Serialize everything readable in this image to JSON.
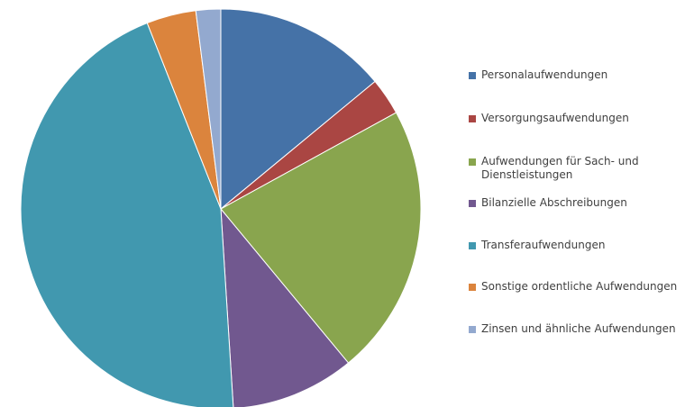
{
  "chart_data": {
    "type": "pie",
    "title": "",
    "legend_position": "right",
    "slices": [
      {
        "label": "Personalaufwendungen",
        "value": 14.0,
        "color": "#4572A7"
      },
      {
        "label": "Versorgungsaufwendungen",
        "value": 3.0,
        "color": "#AA4643"
      },
      {
        "label": "Aufwendungen für Sach- und Dienstleistungen",
        "value": 22.0,
        "color": "#89A54E"
      },
      {
        "label": "Bilanzielle Abschreibungen",
        "value": 10.0,
        "color": "#71588F"
      },
      {
        "label": "Transferaufwendungen",
        "value": 45.0,
        "color": "#4198AF"
      },
      {
        "label": "Sonstige ordentliche Aufwendungen",
        "value": 4.0,
        "color": "#DB843D"
      },
      {
        "label": "Zinsen und ähnliche Aufwendungen",
        "value": 2.0,
        "color": "#93A9CF"
      }
    ]
  }
}
